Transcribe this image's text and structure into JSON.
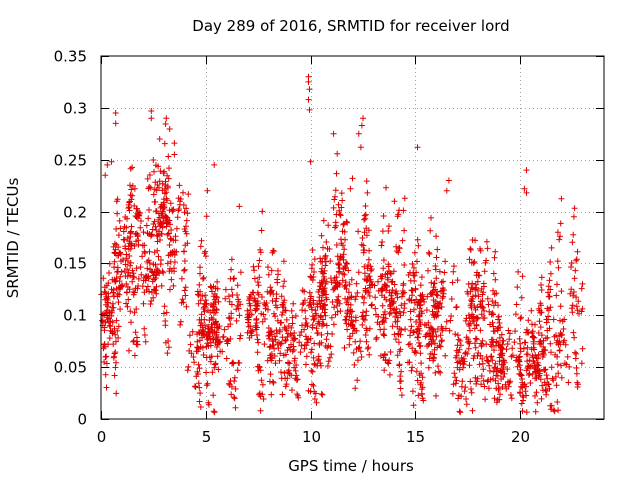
{
  "chart_data": {
    "type": "scatter",
    "title": "Day 289 of 2016, SRMTID for receiver lord",
    "xlabel": "GPS time / hours",
    "ylabel": "SRMTID / TECUs",
    "xlim": [
      0,
      24
    ],
    "ylim": [
      0,
      0.35
    ],
    "xticks": [
      0,
      5,
      10,
      15,
      20
    ],
    "yticks": [
      0,
      0.05,
      0.1,
      0.15,
      0.2,
      0.25,
      0.3,
      0.35
    ],
    "xtick_labels": [
      "0",
      "5",
      "10",
      "15",
      "20"
    ],
    "ytick_labels": [
      "0",
      "0.05",
      "0.1",
      "0.15",
      "0.2",
      "0.25",
      "0.3",
      "0.35"
    ],
    "grid": true,
    "marker": "+",
    "color": "#e00000",
    "x_extent": [
      0,
      23
    ],
    "approx_count": 2300,
    "trend_note": "Point cloud approximated from the dense scatter; envelope is base level per hour with spread and sparse spikes.",
    "envelope": {
      "hours": [
        0,
        0.5,
        1,
        1.5,
        2,
        2.5,
        3,
        3.5,
        4,
        4.5,
        5,
        6,
        7,
        8,
        9,
        10,
        10.5,
        11,
        11.5,
        12,
        12.5,
        13,
        14,
        15,
        16,
        17,
        18,
        19,
        19.5,
        20,
        21,
        22,
        23
      ],
      "center": [
        0.1,
        0.12,
        0.14,
        0.16,
        0.13,
        0.17,
        0.18,
        0.17,
        0.13,
        0.09,
        0.08,
        0.08,
        0.09,
        0.09,
        0.08,
        0.09,
        0.1,
        0.14,
        0.15,
        0.12,
        0.13,
        0.11,
        0.11,
        0.1,
        0.08,
        0.08,
        0.08,
        0.07,
        0.06,
        0.055,
        0.07,
        0.08,
        0.08
      ],
      "spread": [
        0.035,
        0.04,
        0.04,
        0.045,
        0.04,
        0.05,
        0.05,
        0.05,
        0.04,
        0.03,
        0.03,
        0.035,
        0.035,
        0.035,
        0.035,
        0.04,
        0.04,
        0.05,
        0.05,
        0.045,
        0.045,
        0.04,
        0.04,
        0.035,
        0.03,
        0.03,
        0.03,
        0.025,
        0.02,
        0.02,
        0.025,
        0.03,
        0.025
      ]
    },
    "spikes": [
      {
        "x": 0.7,
        "y": 0.295
      },
      {
        "x": 0.7,
        "y": 0.285
      },
      {
        "x": 0.5,
        "y": 0.248
      },
      {
        "x": 2.4,
        "y": 0.297
      },
      {
        "x": 2.4,
        "y": 0.29
      },
      {
        "x": 2.8,
        "y": 0.27
      },
      {
        "x": 3.5,
        "y": 0.266
      },
      {
        "x": 3.5,
        "y": 0.255
      },
      {
        "x": 5.4,
        "y": 0.245
      },
      {
        "x": 9.9,
        "y": 0.33
      },
      {
        "x": 9.9,
        "y": 0.325
      },
      {
        "x": 9.95,
        "y": 0.318
      },
      {
        "x": 9.9,
        "y": 0.308
      },
      {
        "x": 9.95,
        "y": 0.298
      },
      {
        "x": 10.0,
        "y": 0.248
      },
      {
        "x": 11.1,
        "y": 0.275
      },
      {
        "x": 12.5,
        "y": 0.29
      },
      {
        "x": 12.45,
        "y": 0.283
      },
      {
        "x": 12.3,
        "y": 0.275
      },
      {
        "x": 12.4,
        "y": 0.262
      },
      {
        "x": 15.1,
        "y": 0.262
      },
      {
        "x": 16.6,
        "y": 0.23
      },
      {
        "x": 16.5,
        "y": 0.22
      },
      {
        "x": 20.3,
        "y": 0.24
      },
      {
        "x": 20.2,
        "y": 0.222
      },
      {
        "x": 20.3,
        "y": 0.218
      },
      {
        "x": 20.0,
        "y": 0.025
      },
      {
        "x": 19.6,
        "y": 0.02
      },
      {
        "x": 20.1,
        "y": 0.03
      },
      {
        "x": 21.8,
        "y": 0.18
      },
      {
        "x": 21.5,
        "y": 0.165
      },
      {
        "x": 14.0,
        "y": 0.21
      },
      {
        "x": 13.6,
        "y": 0.223
      },
      {
        "x": 0.2,
        "y": 0.235
      },
      {
        "x": 0.3,
        "y": 0.245
      },
      {
        "x": 0.15,
        "y": 0.055
      },
      {
        "x": 6.6,
        "y": 0.205
      },
      {
        "x": 11.9,
        "y": 0.222
      },
      {
        "x": 12.0,
        "y": 0.232
      }
    ]
  }
}
